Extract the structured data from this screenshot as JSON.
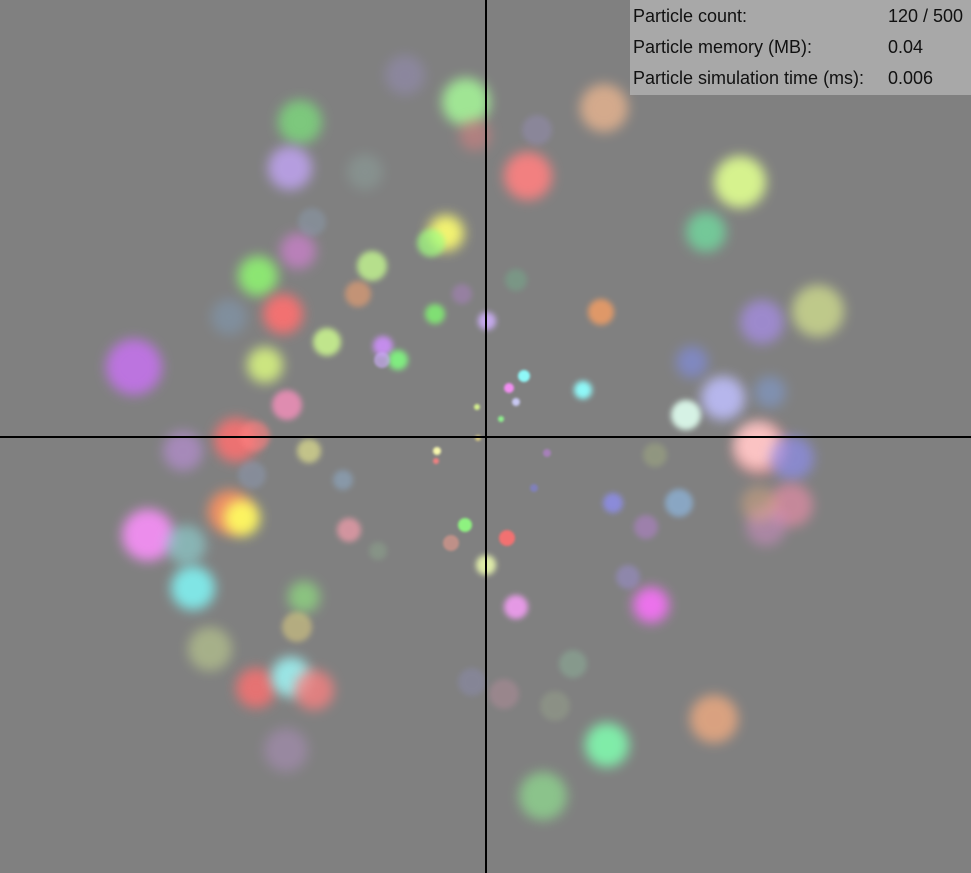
{
  "stats": {
    "rows": [
      {
        "label": "Particle count:",
        "value": "120 / 500"
      },
      {
        "label": "Particle memory (MB):",
        "value": "0.04"
      },
      {
        "label": "Particle simulation time (ms):",
        "value": "0.006"
      }
    ]
  },
  "colors": {
    "background": "#808080",
    "axis": "#000000",
    "panel": "#b4b4b4"
  }
}
